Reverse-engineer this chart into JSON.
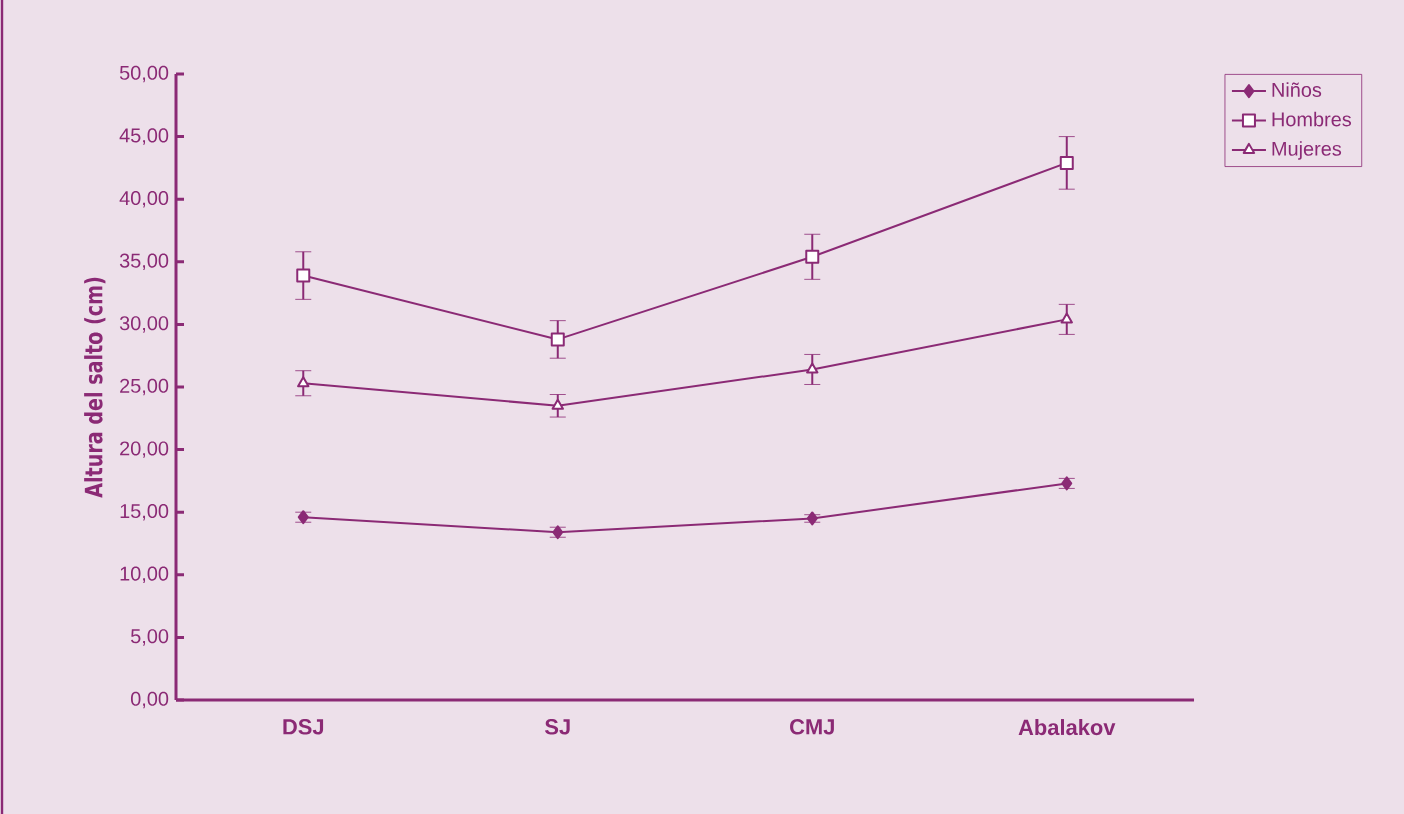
{
  "chart_data": {
    "type": "line",
    "ylabel": "Altura del salto (cm)",
    "categories": [
      "DSJ",
      "SJ",
      "CMJ",
      "Abalakov"
    ],
    "ylim": [
      0,
      50
    ],
    "yticks": [
      {
        "value": 0,
        "label": "0,00"
      },
      {
        "value": 5,
        "label": "5,00"
      },
      {
        "value": 10,
        "label": "10,00"
      },
      {
        "value": 15,
        "label": "15,00"
      },
      {
        "value": 20,
        "label": "20,00"
      },
      {
        "value": 25,
        "label": "25,00"
      },
      {
        "value": 30,
        "label": "30,00"
      },
      {
        "value": 35,
        "label": "35,00"
      },
      {
        "value": 40,
        "label": "40,00"
      },
      {
        "value": 45,
        "label": "45,00"
      },
      {
        "value": 50,
        "label": "50,00"
      }
    ],
    "series": [
      {
        "name": "Niños",
        "color": "#8b2a75",
        "marker": "diamond",
        "values": [
          14.6,
          13.4,
          14.5,
          17.3
        ],
        "errors": [
          0.4,
          0.4,
          0.3,
          0.4
        ]
      },
      {
        "name": "Hombres",
        "color": "#8b2a75",
        "marker": "square",
        "values": [
          33.9,
          28.8,
          35.4,
          42.9
        ],
        "errors": [
          1.9,
          1.5,
          1.8,
          2.1
        ]
      },
      {
        "name": "Mujeres",
        "color": "#8b2a75",
        "marker": "triangle",
        "values": [
          25.3,
          23.5,
          26.4,
          30.4
        ],
        "errors": [
          1.0,
          0.9,
          1.2,
          1.2
        ]
      }
    ],
    "grid": false,
    "legend": "top right",
    "line_style": "solid"
  }
}
